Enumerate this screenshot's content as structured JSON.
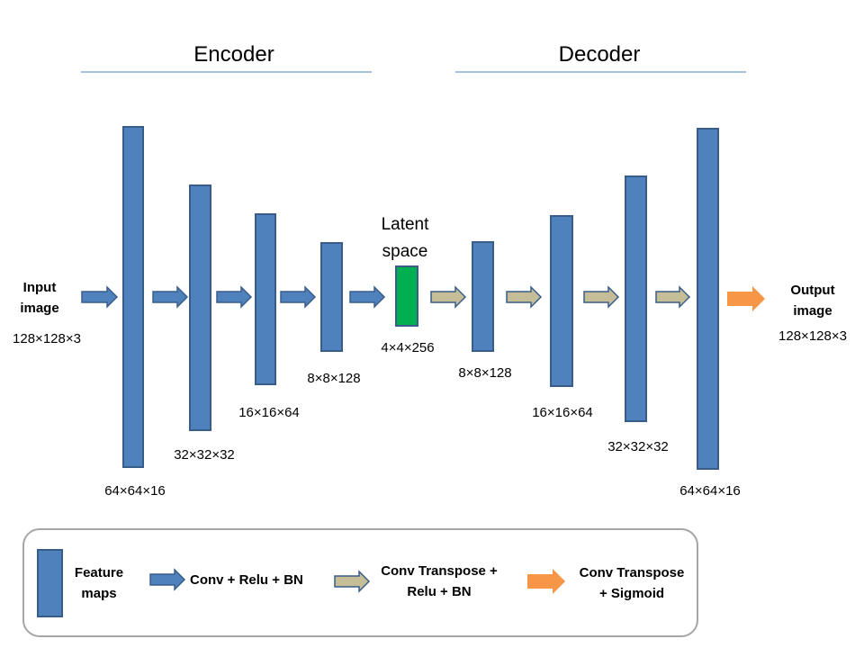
{
  "sections": {
    "encoder_title": "Encoder",
    "decoder_title": "Decoder"
  },
  "input": {
    "line1": "Input",
    "line2": "image",
    "dims": "128×128×3"
  },
  "output": {
    "line1": "Output",
    "line2": "image",
    "dims": "128×128×3"
  },
  "latent": {
    "line1": "Latent",
    "line2": "space",
    "dims": "4×4×256"
  },
  "encoder_maps": [
    {
      "dims": "64×64×16"
    },
    {
      "dims": "32×32×32"
    },
    {
      "dims": "16×16×64"
    },
    {
      "dims": "8×8×128"
    }
  ],
  "decoder_maps": [
    {
      "dims": "8×8×128"
    },
    {
      "dims": "16×16×64"
    },
    {
      "dims": "32×32×32"
    },
    {
      "dims": "64×64×16"
    }
  ],
  "legend": {
    "feature_maps": [
      "Feature",
      "maps"
    ],
    "conv": "Conv + Relu + BN",
    "conv_transpose": [
      "Conv Transpose  +",
      "Relu + BN"
    ],
    "conv_transpose_sigmoid": [
      "Conv Transpose",
      "+ Sigmoid"
    ]
  },
  "colors": {
    "feature_map": "#4f81bd",
    "feature_map_border": "#385d8a",
    "latent": "#00b050",
    "conv_arrow": "#4f81bd",
    "transpose_arrow": "#c4bd97",
    "sigmoid_arrow": "#f79646",
    "divider": "#4f81bd"
  }
}
